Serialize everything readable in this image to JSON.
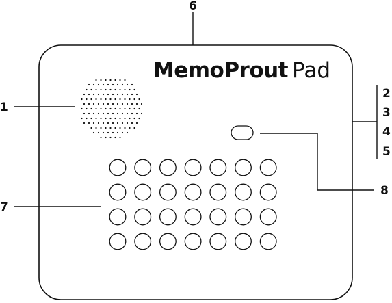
{
  "device": {
    "brand_bold": "MemoProut",
    "brand_light": "Pad"
  },
  "callouts": {
    "c1": "1",
    "c2": "2",
    "c3": "3",
    "c4": "4",
    "c5": "5",
    "c6": "6",
    "c7": "7",
    "c8": "8"
  },
  "keypad": {
    "rows": 4,
    "columns": 7
  },
  "colors": {
    "ink": "#111111",
    "background": "#ffffff"
  }
}
